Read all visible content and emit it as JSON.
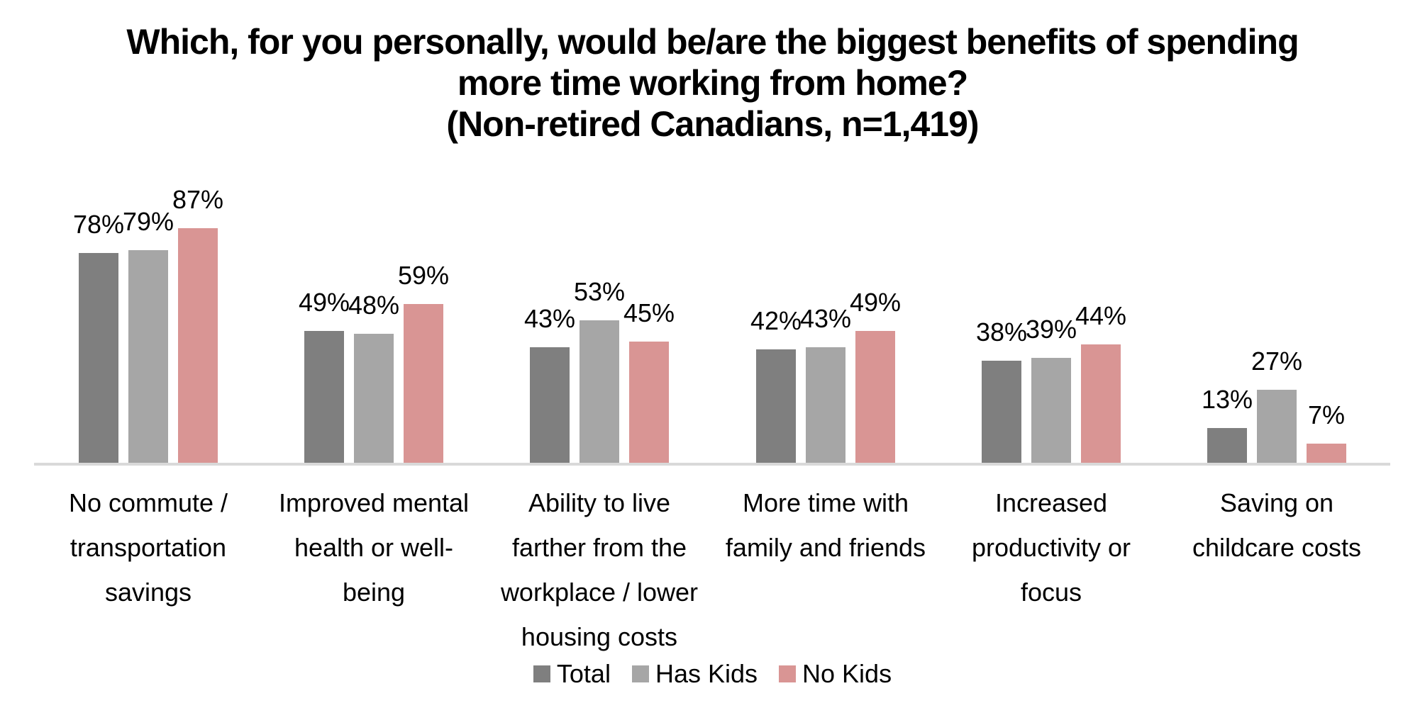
{
  "title": {
    "lines": [
      "Which, for you personally, would be/are the biggest benefits of spending",
      "more time working from home?",
      "(Non-retired Canadians, n=1,419)"
    ]
  },
  "chart_data": {
    "type": "bar",
    "title": "Which, for you personally, would be/are the biggest benefits of spending more time working from home?",
    "subtitle": "(Non-retired Canadians, n=1,419)",
    "categories": [
      "No commute / transportation savings",
      "Improved mental health or well-being",
      "Ability to live farther from the workplace / lower housing costs",
      "More time with family and friends",
      "Increased productivity or focus",
      "Saving on childcare costs"
    ],
    "category_label_lines": [
      [
        "No commute /",
        "transportation",
        "savings"
      ],
      [
        "Improved mental",
        "health or well-",
        "being"
      ],
      [
        "Ability to live",
        "farther from the",
        "workplace / lower",
        "housing costs"
      ],
      [
        "More time with",
        "family and friends"
      ],
      [
        "Increased",
        "productivity or",
        "focus"
      ],
      [
        "Saving on",
        "childcare costs"
      ]
    ],
    "series": [
      {
        "name": "Total",
        "color": "#7f7f7f",
        "values": [
          78,
          49,
          43,
          42,
          38,
          13
        ]
      },
      {
        "name": "Has Kids",
        "color": "#a6a6a6",
        "values": [
          79,
          48,
          53,
          43,
          39,
          27
        ]
      },
      {
        "name": "No Kids",
        "color": "#d99594",
        "values": [
          87,
          59,
          45,
          49,
          44,
          7
        ]
      }
    ],
    "value_suffix": "%",
    "ylim": [
      0,
      100
    ],
    "grid": false,
    "data_labels": true,
    "legend_position": "bottom",
    "axis_line_color": "#d9d9d9",
    "text_color": "#000000",
    "background_color": "#ffffff"
  }
}
